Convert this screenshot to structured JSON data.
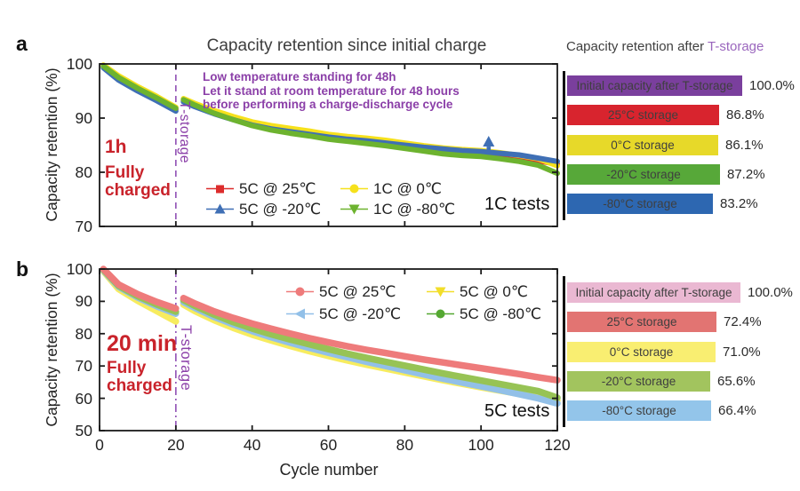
{
  "figure": {
    "panel_a_letter": "a",
    "panel_b_letter": "b",
    "right_title_prefix": "Capacity retention after ",
    "right_title_highlight": "T-storage",
    "colors": {
      "purple_accent": "#8b3fa8",
      "red_note": "#c9232b",
      "axis": "#1a1a1a",
      "title_gray": "#3d3d3d"
    }
  },
  "panel_a": {
    "title": "Capacity retention since initial charge",
    "ylabel": "Capacity retention (%)",
    "charge_note": [
      "1h",
      "Fully",
      "charged"
    ],
    "storage_note": [
      "Low temperature standing for 48h",
      "Let it stand at room temperature for 48 hours",
      "before performing a charge-discharge cycle"
    ],
    "tstorage_label": "T-storage",
    "tests_label": "1C tests"
  },
  "panel_b": {
    "ylabel": "Capacity retention (%)",
    "xlabel": "Cycle number",
    "charge_note": [
      "20 min",
      "Fully",
      "charged"
    ],
    "tstorage_label": "T-storage",
    "tests_label": "5C tests"
  },
  "chart_data": [
    {
      "type": "line",
      "panel": "a",
      "title": "Capacity retention since initial charge",
      "ylabel": "Capacity retention (%)",
      "xlim": [
        0,
        120
      ],
      "ylim": [
        70,
        100
      ],
      "x_ticks": [
        20,
        40,
        60,
        80,
        100
      ],
      "x_tick_labels": false,
      "y_ticks": [
        100,
        90,
        80,
        70
      ],
      "vline": {
        "x": 20,
        "style": "dashed",
        "color": "#9050b5",
        "label": "T-storage"
      },
      "arrow_marker": {
        "x": 102,
        "y": 85.4,
        "color": "#3f6fb5"
      },
      "x_pre": [
        1,
        5,
        10,
        15,
        20
      ],
      "x_post": [
        22,
        25,
        30,
        35,
        40,
        45,
        50,
        55,
        60,
        65,
        70,
        75,
        80,
        85,
        90,
        95,
        100,
        105,
        110,
        115,
        120
      ],
      "series": [
        {
          "name": "5C @ 25℃",
          "color": "#dc2c2c",
          "marker": "square",
          "z": 1,
          "y_pre": [
            99.5,
            97.4,
            95.4,
            93.6,
            91.6
          ],
          "y_post": [
            93.2,
            92.3,
            91.0,
            89.9,
            88.9,
            88.2,
            87.7,
            87.2,
            86.6,
            86.2,
            85.9,
            85.5,
            85.0,
            84.5,
            84.1,
            83.8,
            83.6,
            83.2,
            82.7,
            82.1,
            81.5
          ]
        },
        {
          "name": "1C @ 0℃",
          "color": "#f6e11c",
          "marker": "circle",
          "z": 2,
          "y_pre": [
            99.8,
            97.8,
            95.8,
            94.0,
            92.0
          ],
          "y_post": [
            93.6,
            92.7,
            91.4,
            90.3,
            89.3,
            88.6,
            88.1,
            87.6,
            87.0,
            86.6,
            86.3,
            85.9,
            85.4,
            84.9,
            84.5,
            84.2,
            84.0,
            83.6,
            83.1,
            82.5,
            81.2
          ]
        },
        {
          "name": "5C @ -20℃",
          "color": "#3f6fb5",
          "marker": "triangle-up",
          "z": 3,
          "y_pre": [
            99.3,
            97.0,
            95.0,
            93.2,
            91.3
          ],
          "y_post": [
            93.0,
            92.1,
            90.8,
            89.7,
            88.7,
            88.0,
            87.5,
            87.0,
            86.5,
            86.1,
            85.8,
            85.4,
            85.0,
            84.6,
            84.3,
            84.0,
            83.8,
            83.5,
            83.2,
            82.6,
            82.0
          ]
        },
        {
          "name": "1C @ -80℃",
          "color": "#6db32f",
          "marker": "triangle-down",
          "z": 4,
          "y_pre": [
            99.6,
            97.5,
            95.5,
            93.7,
            91.8
          ],
          "y_post": [
            93.4,
            92.4,
            90.9,
            89.7,
            88.6,
            87.8,
            87.2,
            86.7,
            86.1,
            85.7,
            85.3,
            84.9,
            84.4,
            83.9,
            83.4,
            83.1,
            82.9,
            82.5,
            82.0,
            81.3,
            79.8
          ]
        }
      ]
    },
    {
      "type": "line",
      "panel": "b",
      "ylabel": "Capacity retention (%)",
      "xlabel": "Cycle number",
      "xlim": [
        0,
        120
      ],
      "ylim": [
        50,
        100
      ],
      "x_ticks": [
        0,
        20,
        40,
        60,
        80,
        100,
        120
      ],
      "x_tick_labels": true,
      "y_ticks": [
        100,
        90,
        80,
        70,
        60,
        50
      ],
      "vline": {
        "x": 20,
        "style": "dashdot",
        "color": "#9050b5",
        "label": "T-storage"
      },
      "x_pre": [
        1,
        5,
        10,
        15,
        20
      ],
      "x_post": [
        22,
        25,
        30,
        35,
        40,
        45,
        50,
        55,
        60,
        65,
        70,
        75,
        80,
        85,
        90,
        95,
        100,
        105,
        110,
        115,
        120
      ],
      "series": [
        {
          "name": "5C @ 25℃",
          "color": "#ee7b7b",
          "marker": "circle",
          "z": 4,
          "y_pre": [
            100,
            95.2,
            92.2,
            89.8,
            87.8
          ],
          "y_post": [
            91.0,
            89.3,
            86.9,
            84.9,
            83.1,
            81.5,
            80.0,
            78.6,
            77.3,
            76.1,
            75.0,
            74.0,
            73.0,
            72.0,
            71.1,
            70.2,
            69.3,
            68.4,
            67.5,
            66.5,
            65.6
          ]
        },
        {
          "name": "5C @ 0℃",
          "color": "#f7ec5f",
          "marker": "triangle-down",
          "z": 1,
          "legend_color": "#f2de2a",
          "y_pre": [
            99.4,
            93.8,
            90.2,
            87.0,
            83.8
          ],
          "y_post": [
            89.0,
            87.0,
            84.2,
            81.8,
            79.7,
            77.9,
            76.2,
            74.6,
            73.1,
            71.7,
            70.4,
            69.2,
            68.0,
            66.8,
            65.6,
            64.5,
            63.4,
            62.4,
            61.4,
            60.4,
            59.4
          ]
        },
        {
          "name": "5C @ -20℃",
          "color": "#92c0e8",
          "marker": "triangle-left",
          "z": 2,
          "y_pre": [
            99.6,
            94.5,
            91.2,
            88.5,
            86.2
          ],
          "y_post": [
            89.8,
            88.0,
            85.2,
            82.9,
            80.8,
            78.9,
            77.2,
            75.6,
            74.1,
            72.7,
            71.3,
            70.0,
            68.7,
            67.4,
            66.1,
            64.9,
            63.7,
            62.5,
            61.3,
            60.0,
            58.4
          ]
        },
        {
          "name": "5C @ -80℃",
          "color": "#97c355",
          "marker": "circle",
          "z": 3,
          "legend_color": "#55a832",
          "y_pre": [
            99.8,
            94.8,
            91.6,
            89.0,
            86.8
          ],
          "y_post": [
            90.4,
            88.6,
            85.9,
            83.6,
            81.6,
            79.8,
            78.2,
            76.7,
            75.2,
            73.8,
            72.5,
            71.3,
            70.1,
            68.9,
            67.7,
            66.6,
            65.5,
            64.4,
            63.3,
            62.2,
            60.2
          ]
        }
      ]
    },
    {
      "type": "bar",
      "panel": "a",
      "title": "Capacity retention after T-storage",
      "rows": [
        {
          "label": "Initial capacity after T-storage",
          "value": 100.0,
          "value_label": "100.0%",
          "color": "#7a3f9d"
        },
        {
          "label": "25°C storage",
          "value": 86.8,
          "value_label": "86.8%",
          "color": "#d8242e"
        },
        {
          "label": "0°C storage",
          "value": 86.1,
          "value_label": "86.1%",
          "color": "#e7d929"
        },
        {
          "label": "-20°C storage",
          "value": 87.2,
          "value_label": "87.2%",
          "color": "#57a839"
        },
        {
          "label": "-80°C storage",
          "value": 83.2,
          "value_label": "83.2%",
          "color": "#2d67b1"
        }
      ]
    },
    {
      "type": "bar",
      "panel": "b",
      "rows": [
        {
          "label": "Initial capacity after T-storage",
          "value": 100.0,
          "value_label": "100.0%",
          "color": "#eab8d2"
        },
        {
          "label": "25°C storage",
          "value": 72.4,
          "value_label": "72.4%",
          "color": "#e27472"
        },
        {
          "label": "0°C storage",
          "value": 71.0,
          "value_label": "71.0%",
          "color": "#f9ee71"
        },
        {
          "label": "-20°C storage",
          "value": 65.6,
          "value_label": "65.6%",
          "color": "#a2c45e"
        },
        {
          "label": "-80°C storage",
          "value": 66.4,
          "value_label": "66.4%",
          "color": "#93c5ea"
        }
      ]
    }
  ]
}
